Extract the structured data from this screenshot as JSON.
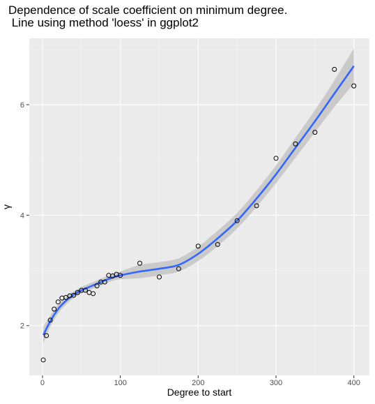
{
  "chart_data": {
    "type": "scatter",
    "title_line1": "Dependence of scale coefficient on minimum degree.",
    "title_line2": " Line using method 'loess' in ggplot2",
    "xlabel": "Degree to start",
    "ylabel": "γ",
    "xlim": [
      -17,
      420
    ],
    "ylim": [
      1.1,
      7.2
    ],
    "x_ticks": [
      0,
      100,
      200,
      300,
      400
    ],
    "y_ticks": [
      2,
      4,
      6
    ],
    "grid": true,
    "background": "#ebebeb",
    "grid_major_color": "#ffffff",
    "smooth_color": "#3366ff",
    "ribbon_color": "#c8c8c8",
    "points": [
      {
        "x": 1,
        "y": 1.38
      },
      {
        "x": 5,
        "y": 1.82
      },
      {
        "x": 10,
        "y": 2.1
      },
      {
        "x": 15,
        "y": 2.3
      },
      {
        "x": 20,
        "y": 2.43
      },
      {
        "x": 25,
        "y": 2.5
      },
      {
        "x": 30,
        "y": 2.51
      },
      {
        "x": 35,
        "y": 2.54
      },
      {
        "x": 40,
        "y": 2.55
      },
      {
        "x": 45,
        "y": 2.6
      },
      {
        "x": 50,
        "y": 2.64
      },
      {
        "x": 55,
        "y": 2.64
      },
      {
        "x": 60,
        "y": 2.6
      },
      {
        "x": 65,
        "y": 2.58
      },
      {
        "x": 70,
        "y": 2.72
      },
      {
        "x": 75,
        "y": 2.79
      },
      {
        "x": 80,
        "y": 2.79
      },
      {
        "x": 85,
        "y": 2.91
      },
      {
        "x": 90,
        "y": 2.9
      },
      {
        "x": 95,
        "y": 2.93
      },
      {
        "x": 100,
        "y": 2.91
      },
      {
        "x": 125,
        "y": 3.13
      },
      {
        "x": 150,
        "y": 2.88
      },
      {
        "x": 175,
        "y": 3.03
      },
      {
        "x": 200,
        "y": 3.44
      },
      {
        "x": 225,
        "y": 3.47
      },
      {
        "x": 250,
        "y": 3.9
      },
      {
        "x": 275,
        "y": 4.17
      },
      {
        "x": 300,
        "y": 5.03
      },
      {
        "x": 325,
        "y": 5.29
      },
      {
        "x": 350,
        "y": 5.5
      },
      {
        "x": 375,
        "y": 6.64
      },
      {
        "x": 400,
        "y": 6.34
      }
    ],
    "smooth": [
      {
        "x": 1,
        "y": 1.83,
        "lo": 1.68,
        "hi": 1.98
      },
      {
        "x": 10,
        "y": 2.08,
        "lo": 1.98,
        "hi": 2.18
      },
      {
        "x": 20,
        "y": 2.3,
        "lo": 2.22,
        "hi": 2.38
      },
      {
        "x": 30,
        "y": 2.45,
        "lo": 2.38,
        "hi": 2.52
      },
      {
        "x": 40,
        "y": 2.56,
        "lo": 2.5,
        "hi": 2.62
      },
      {
        "x": 50,
        "y": 2.64,
        "lo": 2.58,
        "hi": 2.7
      },
      {
        "x": 60,
        "y": 2.7,
        "lo": 2.64,
        "hi": 2.76
      },
      {
        "x": 70,
        "y": 2.76,
        "lo": 2.7,
        "hi": 2.82
      },
      {
        "x": 80,
        "y": 2.82,
        "lo": 2.76,
        "hi": 2.88
      },
      {
        "x": 90,
        "y": 2.87,
        "lo": 2.81,
        "hi": 2.93
      },
      {
        "x": 100,
        "y": 2.91,
        "lo": 2.84,
        "hi": 2.98
      },
      {
        "x": 125,
        "y": 2.98,
        "lo": 2.86,
        "hi": 3.1
      },
      {
        "x": 150,
        "y": 3.03,
        "lo": 2.91,
        "hi": 3.15
      },
      {
        "x": 175,
        "y": 3.1,
        "lo": 2.98,
        "hi": 3.22
      },
      {
        "x": 200,
        "y": 3.3,
        "lo": 3.17,
        "hi": 3.43
      },
      {
        "x": 225,
        "y": 3.58,
        "lo": 3.44,
        "hi": 3.72
      },
      {
        "x": 250,
        "y": 3.9,
        "lo": 3.76,
        "hi": 4.04
      },
      {
        "x": 275,
        "y": 4.3,
        "lo": 4.15,
        "hi": 4.45
      },
      {
        "x": 300,
        "y": 4.74,
        "lo": 4.58,
        "hi": 4.9
      },
      {
        "x": 325,
        "y": 5.22,
        "lo": 5.04,
        "hi": 5.4
      },
      {
        "x": 350,
        "y": 5.7,
        "lo": 5.5,
        "hi": 5.9
      },
      {
        "x": 375,
        "y": 6.2,
        "lo": 5.96,
        "hi": 6.44
      },
      {
        "x": 400,
        "y": 6.7,
        "lo": 6.38,
        "hi": 7.02
      }
    ]
  }
}
